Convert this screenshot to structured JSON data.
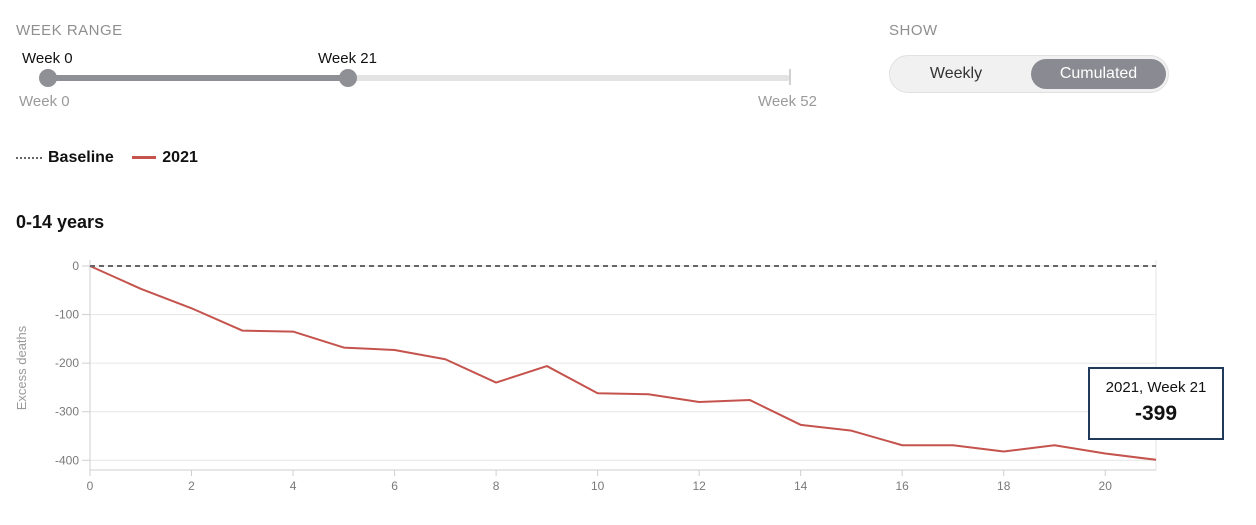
{
  "controls": {
    "week_range": {
      "label": "WEEK RANGE",
      "from_label": "Week 0",
      "to_label": "Week 21",
      "min_label": "Week 0",
      "max_label": "Week 52",
      "from": 0,
      "to": 21,
      "min": 0,
      "max": 52
    },
    "show": {
      "label": "SHOW",
      "options": [
        "Weekly",
        "Cumulated"
      ],
      "selected": "Cumulated"
    }
  },
  "legend": {
    "baseline_label": "Baseline",
    "series_label": "2021"
  },
  "tooltip": {
    "title": "2021, Week 21",
    "value": "-399"
  },
  "colors": {
    "series": "#c5534d",
    "baseline": "#666666",
    "accent": "#8a8a92",
    "tooltip_border": "#1f3a5a"
  },
  "chart_data": {
    "type": "line",
    "title": "0-14 years",
    "xlabel": "",
    "ylabel": "Excess deaths",
    "xlim": [
      0,
      21
    ],
    "ylim": [
      -420,
      0
    ],
    "xticks": [
      0,
      2,
      4,
      6,
      8,
      10,
      12,
      14,
      16,
      18,
      20
    ],
    "yticks": [
      0,
      -100,
      -200,
      -300,
      -400
    ],
    "grid": true,
    "series": [
      {
        "name": "2021",
        "x": [
          0,
          1,
          2,
          3,
          4,
          5,
          6,
          7,
          8,
          9,
          10,
          11,
          12,
          13,
          14,
          15,
          16,
          17,
          18,
          19,
          20,
          21
        ],
        "values": [
          0,
          -47,
          -87,
          -133,
          -135,
          -168,
          -173,
          -192,
          -240,
          -206,
          -262,
          -264,
          -280,
          -276,
          -327,
          -339,
          -369,
          -369,
          -382,
          -369,
          -386,
          -399
        ]
      },
      {
        "name": "Baseline",
        "x": [
          0,
          21
        ],
        "values": [
          0,
          0
        ]
      }
    ]
  }
}
